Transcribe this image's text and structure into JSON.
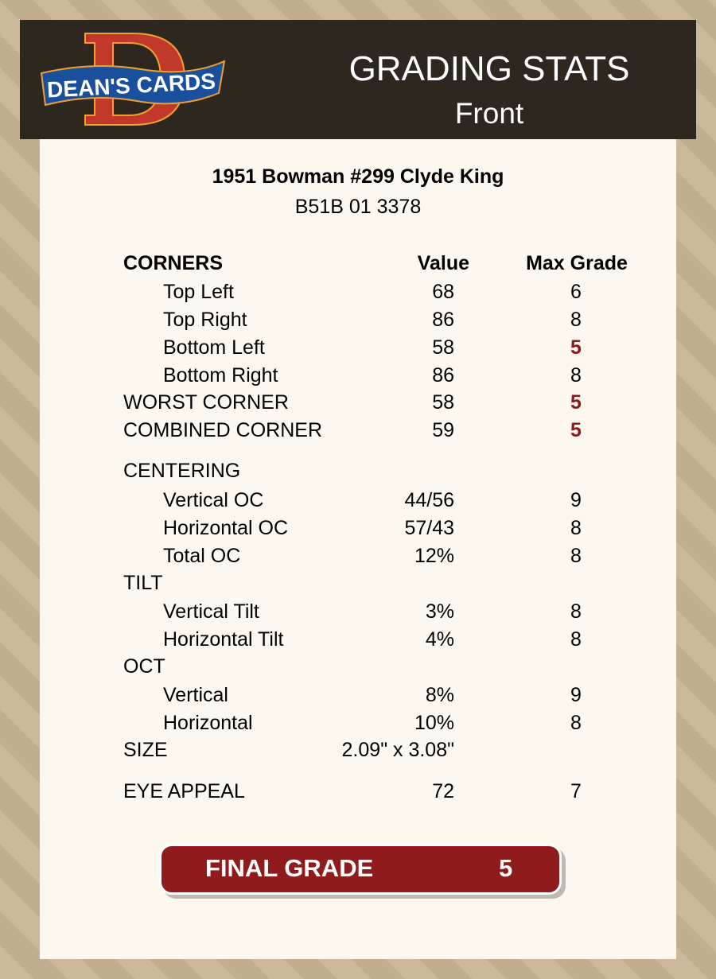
{
  "header": {
    "logo_text": "DEAN'S CARDS",
    "title": "GRADING STATS",
    "subtitle": "Front"
  },
  "card": {
    "name": "1951 Bowman #299 Clyde King",
    "cert": "B51B 01 3378"
  },
  "colors": {
    "bad_grade": "#8b1a1a",
    "final_bg": "#8f1b1c",
    "header_bg": "#2e2720"
  },
  "rows": [
    {
      "type": "head",
      "label": "CORNERS",
      "value": "Value",
      "max": "Max Grade"
    },
    {
      "type": "sub",
      "label": "Top Left",
      "value": "68",
      "max": "6"
    },
    {
      "type": "sub",
      "label": "Top Right",
      "value": "86",
      "max": "8"
    },
    {
      "type": "sub",
      "label": "Bottom Left",
      "value": "58",
      "max": "5",
      "bad": true
    },
    {
      "type": "sub",
      "label": "Bottom Right",
      "value": "86",
      "max": "8"
    },
    {
      "type": "bold",
      "label": "WORST CORNER",
      "value": "58",
      "max": "5",
      "bad": true
    },
    {
      "type": "bold",
      "label": "COMBINED CORNER",
      "value": "59",
      "max": "5",
      "bad": true
    },
    {
      "type": "bold",
      "label": "CENTERING",
      "value": "",
      "max": ""
    },
    {
      "type": "sub",
      "label": "Vertical OC",
      "value": "44/56",
      "max": "9"
    },
    {
      "type": "sub",
      "label": "Horizontal OC",
      "value": "57/43",
      "max": "8"
    },
    {
      "type": "sub",
      "label": "Total OC",
      "value": "12%",
      "max": "8"
    },
    {
      "type": "bold",
      "label": "TILT",
      "value": "",
      "max": ""
    },
    {
      "type": "sub",
      "label": "Vertical Tilt",
      "value": "3%",
      "max": "8"
    },
    {
      "type": "sub",
      "label": "Horizontal Tilt",
      "value": "4%",
      "max": "8"
    },
    {
      "type": "bold",
      "label": "OCT",
      "value": "",
      "max": ""
    },
    {
      "type": "sub",
      "label": "Vertical",
      "value": "8%",
      "max": "9"
    },
    {
      "type": "sub",
      "label": "Horizontal",
      "value": "10%",
      "max": "8"
    },
    {
      "type": "bold",
      "label": "SIZE",
      "value": "2.09\" x 3.08\"",
      "max": ""
    },
    {
      "type": "bold",
      "label": "EYE APPEAL",
      "value": "72",
      "max": "7"
    }
  ],
  "final": {
    "label": "FINAL GRADE",
    "value": "5"
  }
}
